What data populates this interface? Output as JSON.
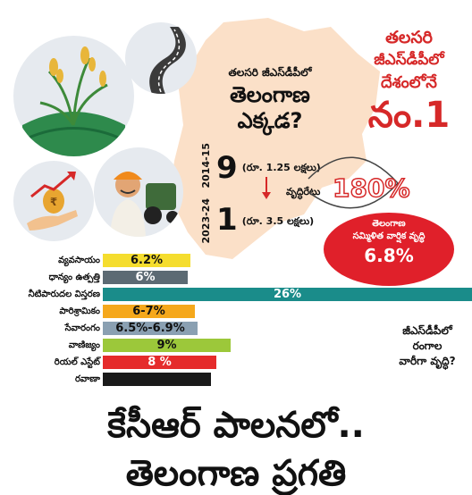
{
  "map_heading": {
    "line1": "తలసరి జీఎస్‌డీపీలో",
    "line2": "తెలంగాణ",
    "line3": "ఎక్కడ?"
  },
  "rank_box": {
    "line1": "తలసరి",
    "line2": "జీఎస్‌డీపీలో",
    "line3": "దేశంలోనే",
    "rank": "నం.1"
  },
  "years_vertical": {
    "top": "2014-15",
    "bottom": "2023-24"
  },
  "rank_2014": {
    "number": "9",
    "amount": "(రూ. 1.25 లక్షలు)"
  },
  "rank_2023": {
    "number": "1",
    "amount": "(రూ. 3.5 లక్షలు)"
  },
  "growth": {
    "label": "వృద్ధిరేటు",
    "value": "180%"
  },
  "cagr": {
    "line1": "తెలంగాణ",
    "line2": "సమ్మిళిత వార్షిక వృద్ధి",
    "value": "6.8%",
    "color": "#e0202a"
  },
  "sector_question": {
    "line1": "జీఎస్‌డీపీలో",
    "line2": "రంగాల",
    "line3": "వారీగా వృద్ధి?"
  },
  "chart_data": {
    "type": "bar",
    "orientation": "horizontal",
    "categories": [
      "వ్యవసాయం",
      "ధాన్యం ఉత్పత్తి",
      "నీటిపారుదల విస్తరణ",
      "పారిశ్రామికం",
      "సేవారంగం",
      "వాణిజ్యం",
      "రియల్ ఎస్టేట్",
      "రవాణా"
    ],
    "value_labels": [
      "6.2%",
      "6%",
      "26%",
      "6-7%",
      "6.5%-6.9%",
      "9%",
      "8 %",
      ""
    ],
    "values": [
      6.2,
      6,
      26,
      6.5,
      6.7,
      9,
      8,
      7.6
    ],
    "colors": [
      "#f5dd2e",
      "#5c6a73",
      "#1a8c8a",
      "#f5a81c",
      "#8aa0b2",
      "#9cc83a",
      "#e52b2b",
      "#1a1a1a"
    ],
    "text_colors": [
      "#111111",
      "#ffffff",
      "#ffffff",
      "#111111",
      "#111111",
      "#111111",
      "#ffffff",
      "#ffffff"
    ],
    "title": "",
    "xlabel": "",
    "ylabel": ""
  },
  "headline": {
    "line1": "కేసీఆర్ పాలనలో..",
    "line2": "తెలంగాణ ప్రగతి"
  },
  "icons": [
    "rice-plant-icon",
    "road-icon",
    "money-growth-icon",
    "farmer-icon"
  ]
}
